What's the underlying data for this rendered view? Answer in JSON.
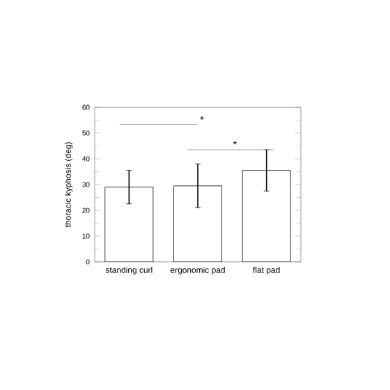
{
  "chart_data": {
    "type": "bar",
    "ylabel": "thoracic kyphosis (deg)",
    "categories": [
      "standing curl",
      "ergonomic pad",
      "flat pad"
    ],
    "values": [
      29,
      29.5,
      35.5
    ],
    "color": "#ffffff",
    "errors": [
      6.5,
      8.5,
      8
    ],
    "ylim": [
      0,
      60
    ],
    "yticks": [
      0,
      10,
      20,
      30,
      40,
      50,
      60
    ],
    "annotations": [
      "*",
      "*"
    ]
  }
}
